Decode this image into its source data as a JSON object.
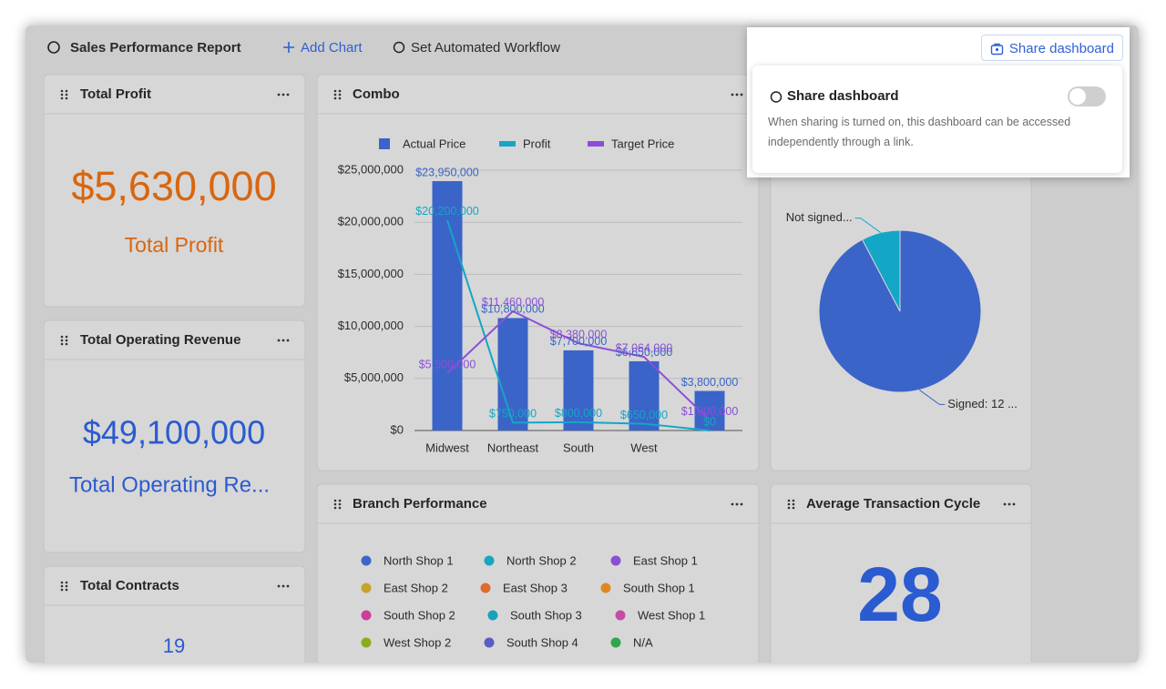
{
  "header": {
    "title": "Sales Performance Report",
    "add_chart": "Add Chart",
    "workflow": "Set Automated Workflow"
  },
  "share": {
    "button": "Share dashboard",
    "popover_title": "Share dashboard",
    "description": "When sharing is turned on, this dashboard can be accessed independently through a link.",
    "enabled": false
  },
  "cards": {
    "total_profit": {
      "title": "Total Profit",
      "value": "$5,630,000",
      "label": "Total Profit"
    },
    "total_operating_revenue": {
      "title": "Total Operating Revenue",
      "value": "$49,100,000",
      "label": "Total Operating Re..."
    },
    "total_contracts": {
      "title": "Total Contracts",
      "value": "19"
    },
    "average_transaction_cycle": {
      "title": "Average Transaction Cycle",
      "value": "28"
    },
    "combo": {
      "title": "Combo"
    },
    "branch_performance": {
      "title": "Branch Performance"
    }
  },
  "branch_legend": [
    {
      "name": "North Shop 1",
      "color": "#3f64c8"
    },
    {
      "name": "North Shop 2",
      "color": "#18a5c2"
    },
    {
      "name": "East Shop 1",
      "color": "#8a4fd3"
    },
    {
      "name": "East Shop 2",
      "color": "#c8a22a"
    },
    {
      "name": "East Shop 3",
      "color": "#df6c2e"
    },
    {
      "name": "South Shop 1",
      "color": "#e2871f"
    },
    {
      "name": "South Shop 2",
      "color": "#cd3d9b"
    },
    {
      "name": "South Shop 3",
      "color": "#17a2bb"
    },
    {
      "name": "West Shop 1",
      "color": "#c54ba6"
    },
    {
      "name": "West Shop 2",
      "color": "#8aac1d"
    },
    {
      "name": "South Shop 4",
      "color": "#5a5bc7"
    },
    {
      "name": "N/A",
      "color": "#2fa64a"
    }
  ],
  "chart_data": [
    {
      "type": "combo",
      "categories": [
        "Midwest",
        "Northeast",
        "South",
        "West",
        null
      ],
      "series": [
        {
          "name": "Actual Price",
          "type": "bar",
          "color": "#3b64c8",
          "values": [
            23950000,
            10800000,
            7700000,
            6650000,
            3800000
          ],
          "value_labels": [
            "$23,950,000",
            "$10,800,000",
            "$7,700,000",
            "$6,650,000",
            "$3,800,000"
          ]
        },
        {
          "name": "Profit",
          "type": "line",
          "color": "#14a6c6",
          "values": [
            20200000,
            750000,
            800000,
            650000,
            0
          ],
          "value_labels": [
            "$20,200,000",
            "$750,000",
            "$800,000",
            "$650,000",
            "$0"
          ]
        },
        {
          "name": "Target Price",
          "type": "line",
          "color": "#8a4fd6",
          "values": [
            5500000,
            11460000,
            8380000,
            7064000,
            1000000
          ],
          "value_labels": [
            "$5,500,000",
            "$11,460,000",
            "$8,380,000",
            "$7,064,000",
            "$1,000,000"
          ]
        }
      ],
      "ylim": [
        0,
        25000000
      ],
      "yticks": [
        {
          "value": 0,
          "label": "$0"
        },
        {
          "value": 5000000,
          "label": "$5,000,000"
        },
        {
          "value": 10000000,
          "label": "$10,000,000"
        },
        {
          "value": 15000000,
          "label": "$15,000,000"
        },
        {
          "value": 20000000,
          "label": "$20,000,000"
        },
        {
          "value": 25000000,
          "label": "$25,000,000"
        }
      ],
      "grid": true
    },
    {
      "type": "pie",
      "labels": [
        "Signed: 12 ...",
        "Not signed..."
      ],
      "values": [
        12,
        1
      ],
      "colors": [
        "#3b64c8",
        "#14a6c6"
      ]
    }
  ]
}
